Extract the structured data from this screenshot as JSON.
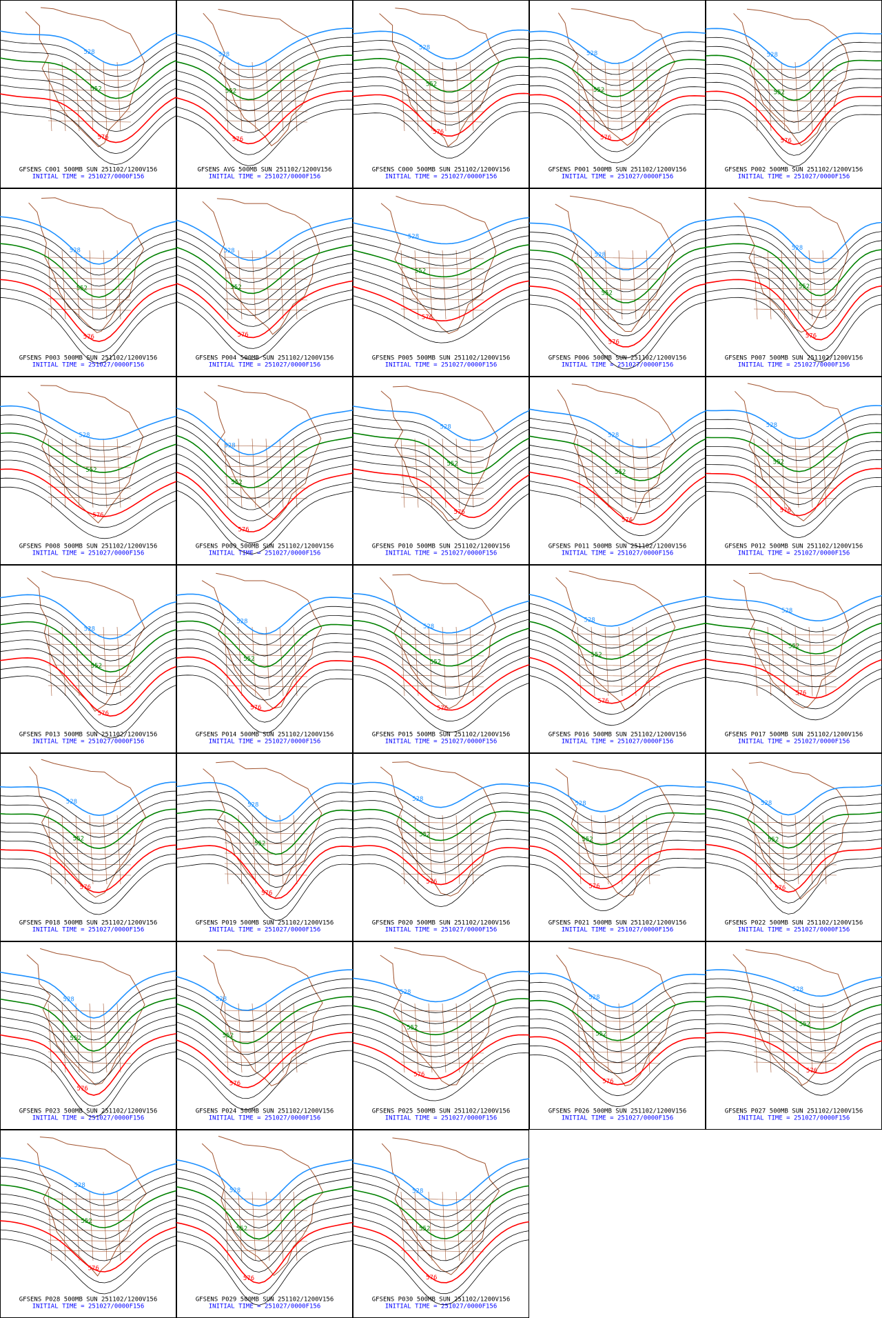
{
  "contour_labels": [
    {
      "label": "528",
      "color": "#1e90ff"
    },
    {
      "label": "552",
      "color": "#008000"
    },
    {
      "label": "576",
      "color": "#ff0000"
    }
  ],
  "initial_time": "INITIAL TIME = 251027/0000F156",
  "panels": [
    "GFSENS C001 500MB SUN 251102/1200V156",
    "GFSENS AVG 500MB SUN 251102/1200V156",
    "GFSENS C000 500MB SUN 251102/1200V156",
    "GFSENS P001 500MB SUN 251102/1200V156",
    "GFSENS P002 500MB SUN 251102/1200V156",
    "GFSENS P003 500MB SUN 251102/1200V156",
    "GFSENS P004 500MB SUN 251102/1200V156",
    "GFSENS P005 500MB SUN 251102/1200V156",
    "GFSENS P006 500MB SUN 251102/1200V156",
    "GFSENS P007 500MB SUN 251102/1200V156",
    "GFSENS P008 500MB SUN 251102/1200V156",
    "GFSENS P009 500MB SUN 251102/1200V156",
    "GFSENS P010 500MB SUN 251102/1200V156",
    "GFSENS P011 500MB SUN 251102/1200V156",
    "GFSENS P012 500MB SUN 251102/1200V156",
    "GFSENS P013 500MB SUN 251102/1200V156",
    "GFSENS P014 500MB SUN 251102/1200V156",
    "GFSENS P015 500MB SUN 251102/1200V156",
    "GFSENS P016 500MB SUN 251102/1200V156",
    "GFSENS P017 500MB SUN 251102/1200V156",
    "GFSENS P018 500MB SUN 251102/1200V156",
    "GFSENS P019 500MB SUN 251102/1200V156",
    "GFSENS P020 500MB SUN 251102/1200V156",
    "GFSENS P021 500MB SUN 251102/1200V156",
    "GFSENS P022 500MB SUN 251102/1200V156",
    "GFSENS P023 500MB SUN 251102/1200V156",
    "GFSENS P024 500MB SUN 251102/1200V156",
    "GFSENS P025 500MB SUN 251102/1200V156",
    "GFSENS P026 500MB SUN 251102/1200V156",
    "GFSENS P027 500MB SUN 251102/1200V156",
    "GFSENS P028 500MB SUN 251102/1200V156",
    "GFSENS P029 500MB SUN 251102/1200V156",
    "GFSENS P030 500MB SUN 251102/1200V156"
  ]
}
